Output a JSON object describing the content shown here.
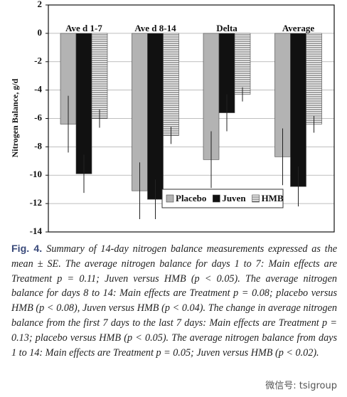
{
  "chart_data": {
    "type": "bar",
    "ylabel": "Nitrogen Balance, g/d",
    "categories": [
      "Ave d 1-7",
      "Ave d 8-14",
      "Delta",
      "Average"
    ],
    "series": [
      {
        "name": "Placebo",
        "color": "#b3b3b3",
        "values": [
          -6.4,
          -11.1,
          -8.9,
          -8.7
        ],
        "errors": [
          2.0,
          2.0,
          2.0,
          2.0
        ]
      },
      {
        "name": "Juven",
        "color": "#111111",
        "values": [
          -9.9,
          -11.7,
          -5.6,
          -10.8
        ],
        "errors": [
          1.35,
          1.4,
          1.3,
          1.4
        ]
      },
      {
        "name": "HMB",
        "color": "#ffffff",
        "pattern": "horizontal-lines",
        "values": [
          -6.0,
          -7.2,
          -4.3,
          -6.4
        ],
        "errors": [
          0.65,
          0.6,
          0.5,
          0.6
        ]
      }
    ],
    "ylim": [
      2,
      -14
    ],
    "yticks": [
      2,
      0,
      -2,
      -4,
      -6,
      -8,
      -10,
      -12,
      -14
    ],
    "grid": true,
    "legend": "lower right"
  },
  "caption": {
    "label": "Fig. 4.",
    "text": "Summary of 14-day nitrogen balance measurements expressed as the mean ± SE. The average nitrogen balance for days 1 to 7: Main effects are Treatment p = 0.11; Juven versus HMB (p < 0.05). The average nitrogen balance for days 8 to 14: Main effects are Treatment p = 0.08; placebo versus HMB (p < 0.08), Juven versus HMB (p < 0.04). The change in average nitrogen balance from the first 7 days to the last 7 days: Main effects are Treatment p = 0.13; placebo versus HMB (p < 0.05). The average nitrogen balance from days 1 to 14: Main effects are Treatment p = 0.05; Juven versus HMB (p < 0.02)."
  },
  "watermark": "微信号: tsigroup"
}
